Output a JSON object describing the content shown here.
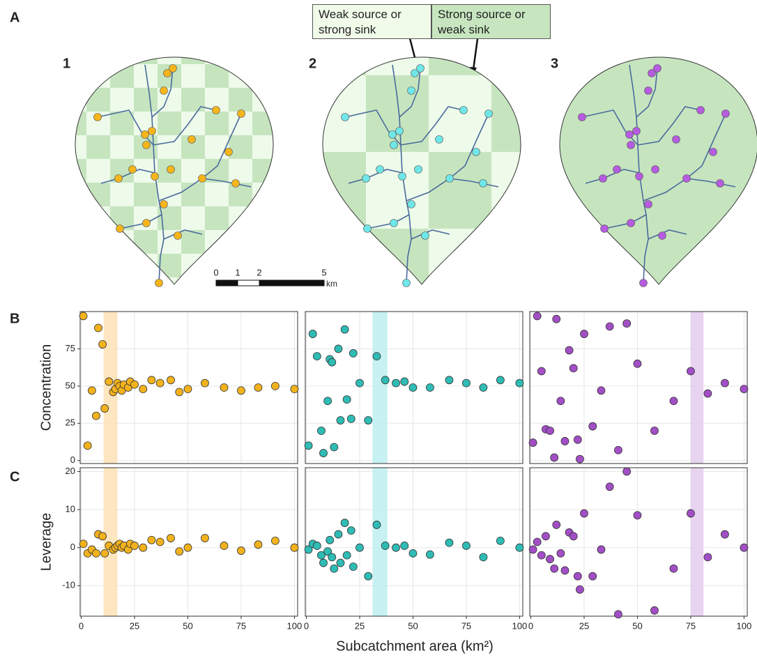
{
  "figure": {
    "panel_labels": [
      "A",
      "B",
      "C"
    ],
    "map_labels": [
      "1",
      "2",
      "3"
    ],
    "legend": [
      {
        "label": "Weak source or strong sink",
        "color": "#f1fbea"
      },
      {
        "label": "Strong source or weak sink",
        "color": "#c7e6c0"
      }
    ],
    "map_colors": [
      "#f5b51b",
      "#6fe6e8",
      "#b65ce0"
    ],
    "scale_labels": [
      0,
      1,
      2,
      5
    ],
    "scale_unit": "km",
    "xlabel": "Subcatchment area (km²)"
  },
  "chart_data": [
    {
      "type": "scatter",
      "ylabel": "Concentration",
      "color": "#f2b21d",
      "band": [
        10.5,
        17
      ],
      "band_color": "#fde2b5",
      "x": [
        1,
        3,
        5,
        7,
        8,
        10,
        11,
        13,
        15,
        16,
        17,
        18,
        19,
        20,
        22,
        23,
        25,
        29,
        33,
        37,
        42,
        46,
        50,
        58,
        67,
        75,
        83,
        91,
        100
      ],
      "y": [
        97,
        10,
        47,
        30,
        89,
        78,
        35,
        53,
        46,
        48,
        52,
        50,
        47,
        51,
        49,
        53,
        51,
        48,
        54,
        52,
        54,
        46,
        48,
        52,
        49,
        47,
        49,
        50,
        48
      ],
      "xlim": [
        -0.5,
        101.5
      ],
      "ylim": [
        -2,
        100
      ],
      "xticks": [
        0,
        25,
        50,
        75,
        100
      ],
      "yticks": [
        0,
        25,
        50,
        75
      ],
      "grid": true
    },
    {
      "type": "scatter",
      "color": "#2fbcb5",
      "band": [
        31,
        38
      ],
      "band_color": "#bdeff0",
      "x": [
        1,
        3,
        5,
        7,
        8,
        10,
        11,
        12,
        13,
        15,
        16,
        18,
        19,
        21,
        22,
        25,
        29,
        33,
        37,
        42,
        46,
        50,
        58,
        67,
        75,
        83,
        91,
        100
      ],
      "y": [
        10,
        85,
        70,
        20,
        5,
        40,
        68,
        66,
        9,
        75,
        27,
        88,
        41,
        28,
        72,
        52,
        27,
        70,
        54,
        52,
        53,
        49,
        49,
        54,
        52,
        49,
        54,
        52
      ],
      "xlim": [
        -0.5,
        101.5
      ],
      "ylim": [
        -2,
        100
      ],
      "xticks": [
        0,
        25,
        50,
        75,
        100
      ],
      "yticks": [
        0,
        25,
        50,
        75
      ],
      "grid": true
    },
    {
      "type": "scatter",
      "color": "#a24fc6",
      "band": [
        75,
        81
      ],
      "band_color": "#e4cdef",
      "x": [
        1,
        3,
        5,
        7,
        9,
        11,
        12,
        14,
        16,
        18,
        20,
        22,
        23,
        25,
        29,
        33,
        37,
        41,
        45,
        50,
        58,
        67,
        75,
        83,
        91,
        100
      ],
      "y": [
        12,
        97,
        60,
        21,
        20,
        2,
        95,
        40,
        13,
        74,
        62,
        14,
        1,
        85,
        23,
        47,
        90,
        7,
        92,
        65,
        20,
        40,
        60,
        45,
        52,
        48
      ],
      "xlim": [
        -0.5,
        101.5
      ],
      "ylim": [
        -2,
        100
      ],
      "xticks": [
        0,
        25,
        50,
        75,
        100
      ],
      "yticks": [
        0,
        25,
        50,
        75
      ],
      "grid": true
    },
    {
      "type": "scatter",
      "ylabel": "Leverage",
      "color": "#f2b21d",
      "band": [
        10.5,
        17
      ],
      "band_color": "#fde2b5",
      "x": [
        1,
        3,
        5,
        7,
        8,
        10,
        11,
        13,
        15,
        16,
        17,
        18,
        19,
        20,
        22,
        23,
        25,
        29,
        33,
        37,
        42,
        46,
        50,
        58,
        67,
        75,
        83,
        91,
        100
      ],
      "y": [
        1,
        -1.5,
        -0.5,
        -1.5,
        3.5,
        3,
        -1.5,
        0.5,
        -0.5,
        0,
        0.5,
        1,
        0,
        0.5,
        -0.5,
        1,
        0.5,
        0,
        2,
        1.5,
        2.5,
        -1,
        0,
        2.5,
        0.5,
        -0.8,
        0.8,
        1.8,
        0
      ],
      "xlim": [
        -0.5,
        101.5
      ],
      "ylim": [
        -18,
        21
      ],
      "xticks": [
        0,
        25,
        50,
        75,
        100
      ],
      "yticks": [
        -10,
        0,
        10,
        20
      ],
      "grid": true
    },
    {
      "type": "scatter",
      "color": "#2fbcb5",
      "band": [
        31,
        38
      ],
      "band_color": "#bdeff0",
      "x": [
        1,
        3,
        5,
        7,
        8,
        10,
        11,
        12,
        13,
        15,
        16,
        18,
        19,
        21,
        22,
        25,
        29,
        33,
        37,
        42,
        46,
        50,
        58,
        67,
        75,
        83,
        91,
        100
      ],
      "y": [
        -0.5,
        1,
        0.5,
        -2,
        -4,
        -1,
        2,
        -2.5,
        -5.5,
        3.5,
        -4,
        6.5,
        -2,
        4.5,
        -5,
        0,
        -7.5,
        6,
        0.5,
        0,
        0.5,
        -1.5,
        -1.8,
        1.3,
        0.5,
        -2.5,
        1.8,
        0
      ],
      "xlim": [
        -0.5,
        101.5
      ],
      "ylim": [
        -18,
        21
      ],
      "xticks": [
        0,
        25,
        50,
        75,
        100
      ],
      "yticks": [
        -10,
        0,
        10,
        20
      ],
      "grid": true
    },
    {
      "type": "scatter",
      "color": "#a24fc6",
      "band": [
        75,
        81
      ],
      "band_color": "#e4cdef",
      "x": [
        1,
        3,
        5,
        7,
        9,
        11,
        12,
        14,
        16,
        18,
        20,
        22,
        23,
        25,
        29,
        33,
        37,
        41,
        45,
        50,
        58,
        67,
        75,
        83,
        91,
        100
      ],
      "y": [
        -0.5,
        1.5,
        -2,
        3,
        -3,
        -5.5,
        6,
        -1.5,
        -6,
        4,
        3,
        -7.5,
        -11,
        9,
        -7.5,
        -0.5,
        16,
        -17.5,
        20,
        8.5,
        -16.5,
        -5.5,
        9,
        -2.5,
        3.5,
        0
      ],
      "xlim": [
        -0.5,
        101.5
      ],
      "ylim": [
        -18,
        21
      ],
      "xticks": [
        0,
        25,
        50,
        75,
        100
      ],
      "yticks": [
        -10,
        0,
        10,
        20
      ],
      "grid": true
    }
  ]
}
